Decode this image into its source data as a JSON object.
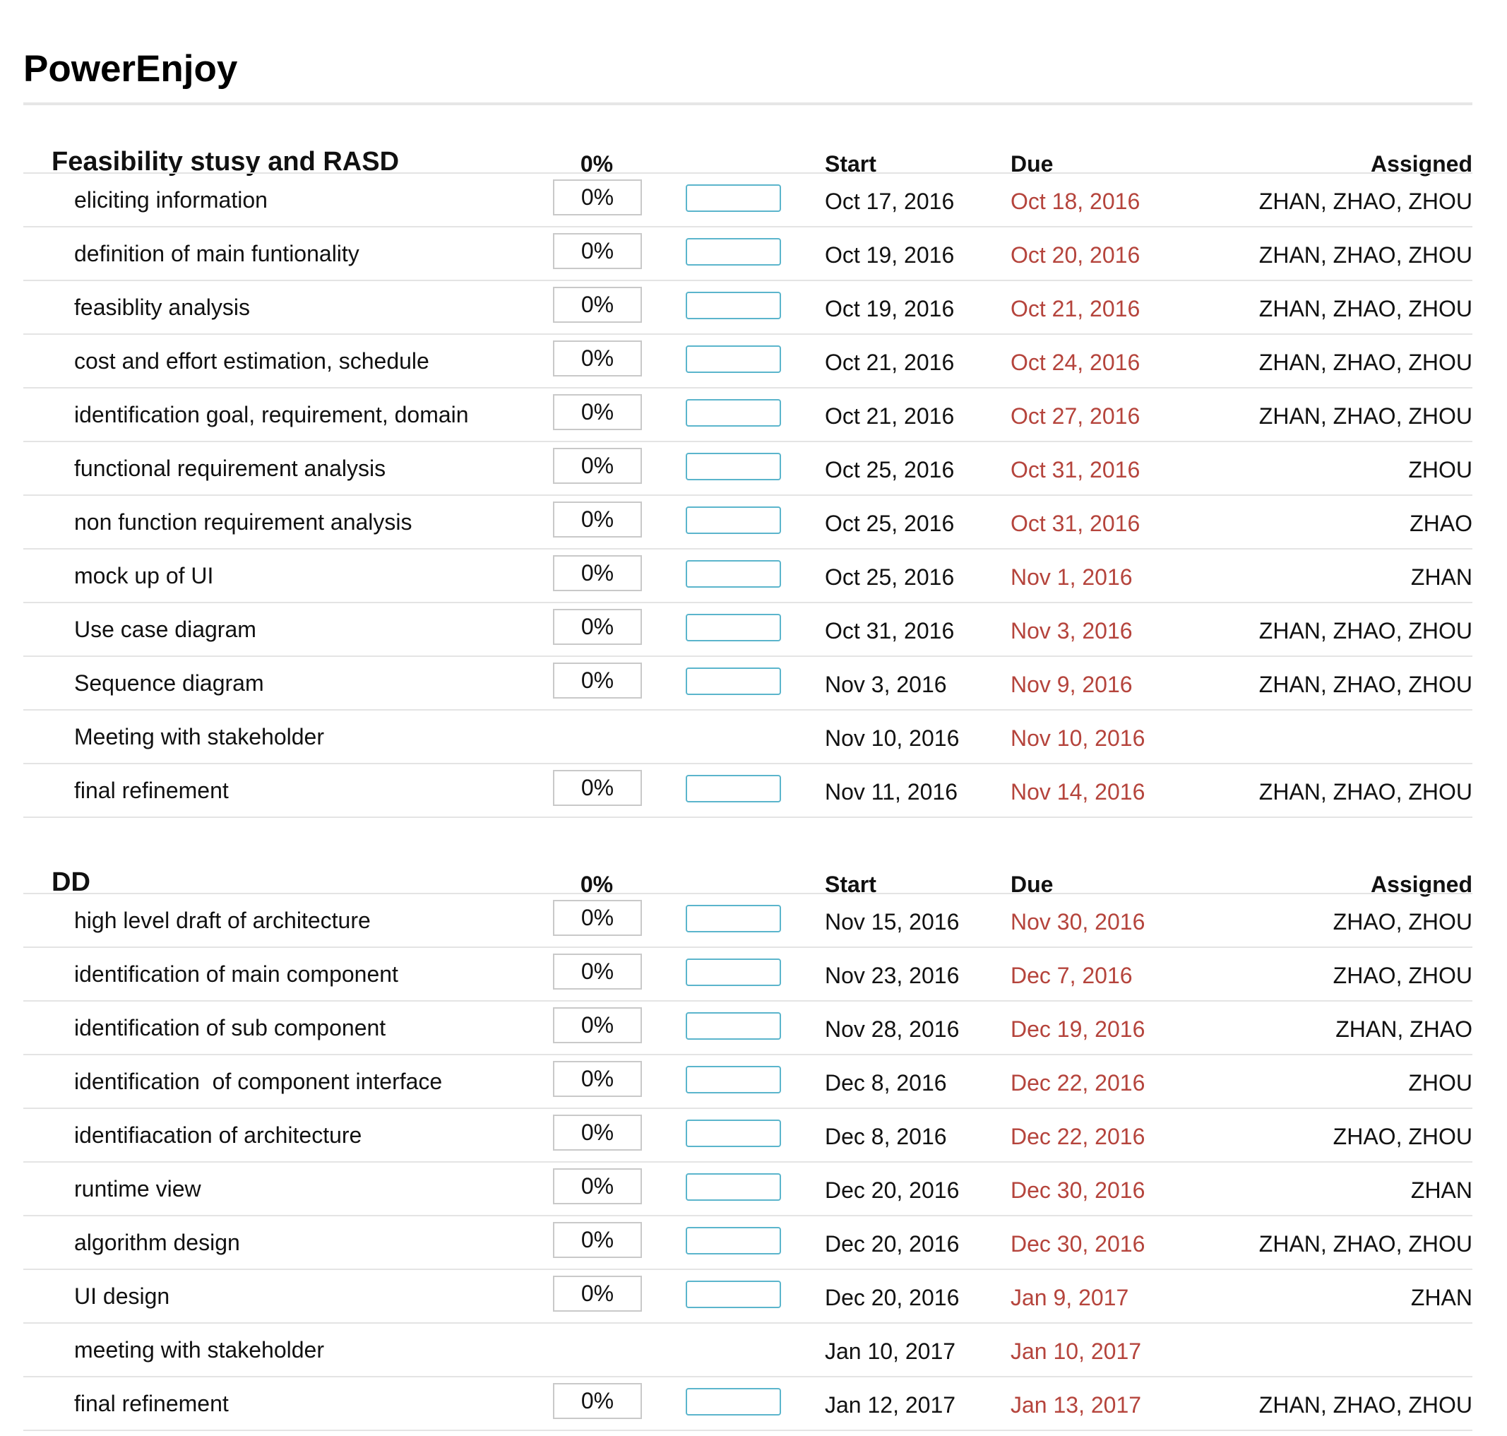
{
  "project_title": "PowerEnjoy",
  "sections": [
    {
      "name": "Feasibility stusy and RASD",
      "progress": "0%",
      "headers": {
        "start": "Start",
        "due": "Due",
        "assigned": "Assigned"
      },
      "tasks": [
        {
          "name": "eliciting information",
          "progress": "0%",
          "progress_fraction": 0,
          "start": "Oct 17, 2016",
          "due": "Oct 18, 2016",
          "assigned": "ZHAN, ZHAO, ZHOU"
        },
        {
          "name": "definition of main funtionality",
          "progress": "0%",
          "progress_fraction": 0,
          "start": "Oct 19, 2016",
          "due": "Oct 20, 2016",
          "assigned": "ZHAN, ZHAO, ZHOU"
        },
        {
          "name": "feasiblity analysis",
          "progress": "0%",
          "progress_fraction": 0,
          "start": "Oct 19, 2016",
          "due": "Oct 21, 2016",
          "assigned": "ZHAN, ZHAO, ZHOU"
        },
        {
          "name": "cost and effort estimation, schedule",
          "progress": "0%",
          "progress_fraction": 0,
          "start": "Oct 21, 2016",
          "due": "Oct 24, 2016",
          "assigned": "ZHAN, ZHAO, ZHOU"
        },
        {
          "name": "identification goal, requirement, domain",
          "progress": "0%",
          "progress_fraction": 0,
          "start": "Oct 21, 2016",
          "due": "Oct 27, 2016",
          "assigned": "ZHAN, ZHAO, ZHOU"
        },
        {
          "name": "functional requirement analysis",
          "progress": "0%",
          "progress_fraction": 0,
          "start": "Oct 25, 2016",
          "due": "Oct 31, 2016",
          "assigned": "ZHOU"
        },
        {
          "name": "non function requirement analysis",
          "progress": "0%",
          "progress_fraction": 0,
          "start": "Oct 25, 2016",
          "due": "Oct 31, 2016",
          "assigned": "ZHAO"
        },
        {
          "name": "mock up of UI",
          "progress": "0%",
          "progress_fraction": 0,
          "start": "Oct 25, 2016",
          "due": "Nov 1, 2016",
          "assigned": "ZHAN"
        },
        {
          "name": "Use case diagram",
          "progress": "0%",
          "progress_fraction": 0,
          "start": "Oct 31, 2016",
          "due": "Nov 3, 2016",
          "assigned": "ZHAN, ZHAO, ZHOU"
        },
        {
          "name": "Sequence diagram",
          "progress": "0%",
          "progress_fraction": 0,
          "start": "Nov 3, 2016",
          "due": "Nov 9, 2016",
          "assigned": "ZHAN, ZHAO, ZHOU"
        },
        {
          "name": "Meeting with stakeholder",
          "milestone": true,
          "start": "Nov 10, 2016",
          "due": "Nov 10, 2016",
          "assigned": ""
        },
        {
          "name": "final refinement",
          "progress": "0%",
          "progress_fraction": 0,
          "start": "Nov 11, 2016",
          "due": "Nov 14, 2016",
          "assigned": "ZHAN, ZHAO, ZHOU"
        }
      ]
    },
    {
      "name": "DD",
      "progress": "0%",
      "headers": {
        "start": "Start",
        "due": "Due",
        "assigned": "Assigned"
      },
      "tasks": [
        {
          "name": "high level draft of architecture",
          "progress": "0%",
          "progress_fraction": 0,
          "start": "Nov 15, 2016",
          "due": "Nov 30, 2016",
          "assigned": "ZHAO, ZHOU"
        },
        {
          "name": "identification of main component",
          "progress": "0%",
          "progress_fraction": 0,
          "start": "Nov 23, 2016",
          "due": "Dec 7, 2016",
          "assigned": "ZHAO, ZHOU"
        },
        {
          "name": "identification of sub component",
          "progress": "0%",
          "progress_fraction": 0,
          "start": "Nov 28, 2016",
          "due": "Dec 19, 2016",
          "assigned": "ZHAN, ZHAO"
        },
        {
          "name": "identification  of component interface",
          "progress": "0%",
          "progress_fraction": 0,
          "start": "Dec 8, 2016",
          "due": "Dec 22, 2016",
          "assigned": "ZHOU"
        },
        {
          "name": "identifiacation of architecture",
          "progress": "0%",
          "progress_fraction": 0,
          "start": "Dec 8, 2016",
          "due": "Dec 22, 2016",
          "assigned": "ZHAO, ZHOU"
        },
        {
          "name": "runtime view",
          "progress": "0%",
          "progress_fraction": 0,
          "start": "Dec 20, 2016",
          "due": "Dec 30, 2016",
          "assigned": "ZHAN"
        },
        {
          "name": "algorithm design",
          "progress": "0%",
          "progress_fraction": 0,
          "start": "Dec 20, 2016",
          "due": "Dec 30, 2016",
          "assigned": "ZHAN, ZHAO, ZHOU"
        },
        {
          "name": "UI design",
          "progress": "0%",
          "progress_fraction": 0,
          "start": "Dec 20, 2016",
          "due": "Jan 9, 2017",
          "assigned": "ZHAN"
        },
        {
          "name": "meeting with stakeholder",
          "milestone": true,
          "start": "Jan 10, 2017",
          "due": "Jan 10, 2017",
          "assigned": ""
        },
        {
          "name": "final refinement",
          "progress": "0%",
          "progress_fraction": 0,
          "start": "Jan 12, 2017",
          "due": "Jan 13, 2017",
          "assigned": "ZHAN, ZHAO, ZHOU"
        }
      ]
    }
  ],
  "colors": {
    "due_date": "#b5443c",
    "progress_bar": "#5bb5cc",
    "row_divider": "#e4e4e4",
    "box_border": "#c9c9c9"
  }
}
